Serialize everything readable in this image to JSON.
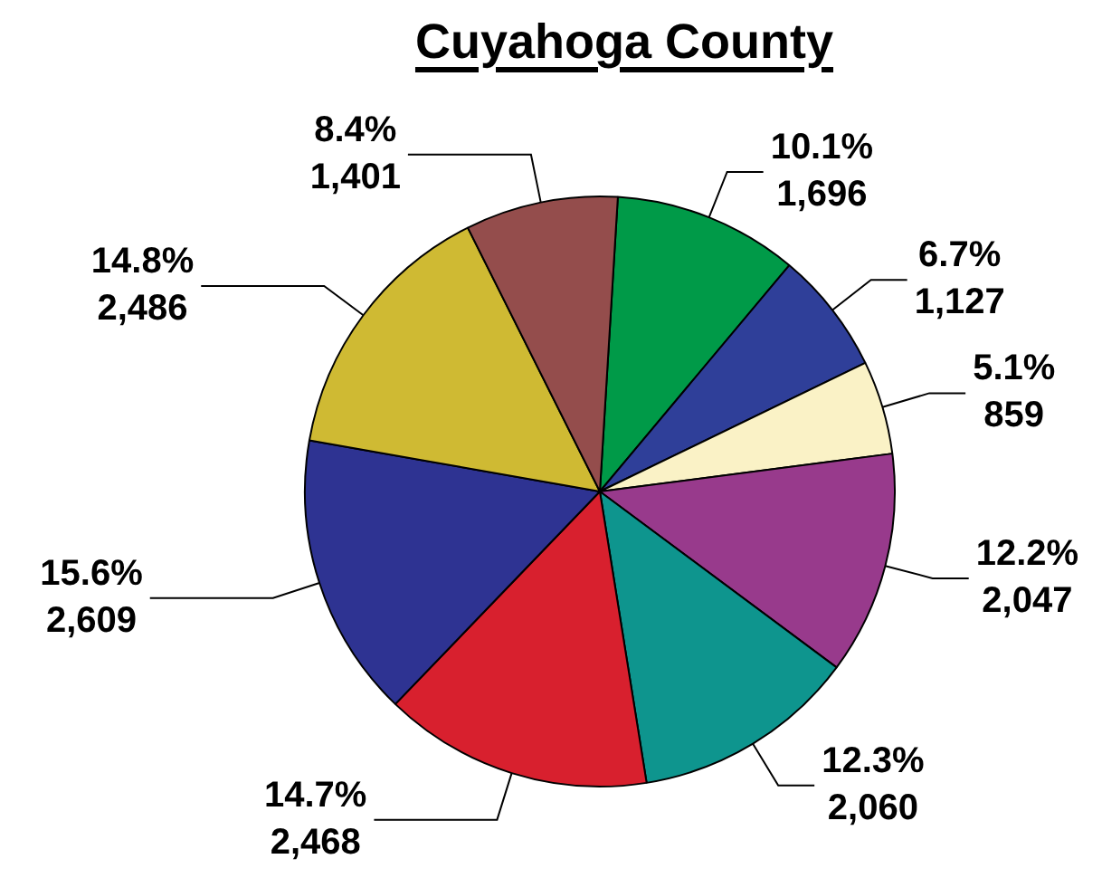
{
  "chart_data": {
    "type": "pie",
    "title": "Cuyahoga County",
    "categories": [
      null,
      null,
      null,
      null,
      null,
      null,
      null,
      null,
      null
    ],
    "values": [
      1696,
      1127,
      859,
      2047,
      2060,
      2468,
      2609,
      2486,
      1401
    ],
    "colors": [
      "#009a48",
      "#2f3f99",
      "#faf2c6",
      "#983a8c",
      "#0e958e",
      "#d8202e",
      "#2e3392",
      "#cfba33",
      "#944d4c"
    ],
    "value_labels": [
      "10.1%\n1,696",
      "6.7%\n1,127",
      "5.1%\n859",
      "12.2%\n2,047",
      "12.3%\n2,060",
      "14.7%\n2,468",
      "15.6%\n2,609",
      "14.8%\n2,486",
      "8.4%\n1,401"
    ]
  }
}
